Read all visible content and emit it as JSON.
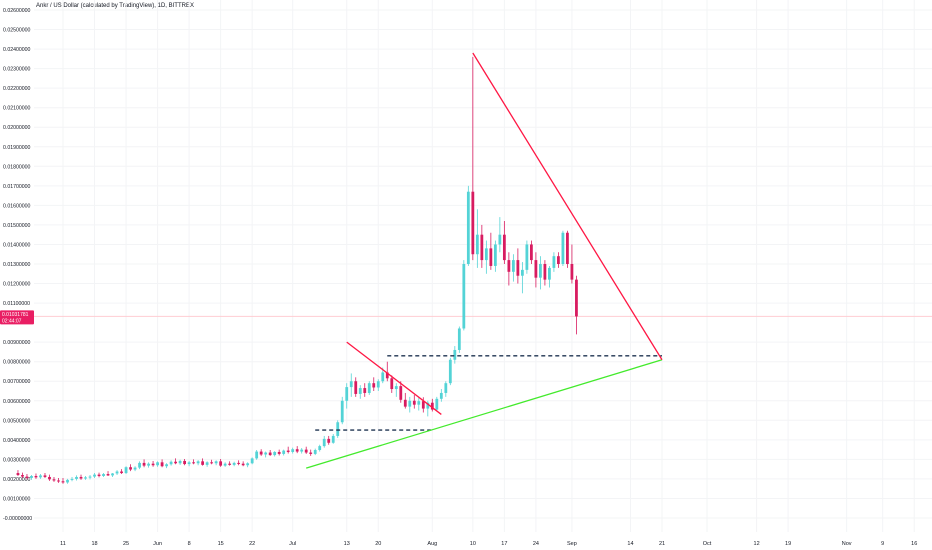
{
  "title": "Ankr / US Dollar (calculated by TradingView), 1D, BITTREX",
  "colors": {
    "up": "#53d3d6",
    "down": "#d81b60",
    "resistance": "#ff1744",
    "support": "#43ea2c",
    "level": "#1e3350",
    "price": "#ffcdd2",
    "badge": "#e91e63"
  },
  "chart_data": {
    "type": "candlestick",
    "y_axis": {
      "min": -0.001,
      "max": 0.026,
      "ticks": [
        "0.02600000",
        "0.02500000",
        "0.02400000",
        "0.02300000",
        "0.02200000",
        "0.02100000",
        "0.02000000",
        "0.01900000",
        "0.01800000",
        "0.01700000",
        "0.01600000",
        "0.01500000",
        "0.01400000",
        "0.01300000",
        "0.01200000",
        "0.01100000",
        "0.00900000",
        "0.00800000",
        "0.00700000",
        "0.00600000",
        "0.00500000",
        "0.00400000",
        "0.00300000",
        "0.00200000",
        "0.00100000",
        "-0.00000000"
      ],
      "tick_values": [
        0.026,
        0.025,
        0.024,
        0.023,
        0.022,
        0.021,
        0.02,
        0.019,
        0.018,
        0.017,
        0.016,
        0.015,
        0.014,
        0.013,
        0.012,
        0.011,
        0.009,
        0.008,
        0.007,
        0.006,
        0.005,
        0.004,
        0.003,
        0.002,
        0.001,
        0.0
      ]
    },
    "x_axis": {
      "ticks": [
        "11",
        "18",
        "25",
        "Jun",
        "8",
        "15",
        "22",
        "Jul",
        "13",
        "20",
        "Aug",
        "10",
        "17",
        "24",
        "Sep",
        "14",
        "21",
        "Oct",
        "12",
        "19",
        "Nov",
        "9",
        "16"
      ],
      "tick_dates": [
        "2020-05-11",
        "2020-05-18",
        "2020-05-25",
        "2020-06-01",
        "2020-06-08",
        "2020-06-15",
        "2020-06-22",
        "2020-07-01",
        "2020-07-13",
        "2020-07-20",
        "2020-08-01",
        "2020-08-10",
        "2020-08-17",
        "2020-08-24",
        "2020-09-01",
        "2020-09-14",
        "2020-09-21",
        "2020-10-01",
        "2020-10-12",
        "2020-10-19",
        "2020-11-01",
        "2020-11-09",
        "2020-11-16"
      ]
    },
    "current_price": {
      "label": "0.01031781",
      "countdown": "02:44:07",
      "value": 0.01031781
    },
    "candles": [
      {
        "d": "2020-05-01",
        "o": 0.0023,
        "h": 0.00245,
        "l": 0.00215,
        "c": 0.0022
      },
      {
        "d": "2020-05-02",
        "o": 0.0022,
        "h": 0.00232,
        "l": 0.00205,
        "c": 0.00212
      },
      {
        "d": "2020-05-03",
        "o": 0.00212,
        "h": 0.00225,
        "l": 0.00198,
        "c": 0.00205
      },
      {
        "d": "2020-05-04",
        "o": 0.00205,
        "h": 0.0022,
        "l": 0.00195,
        "c": 0.00215
      },
      {
        "d": "2020-05-05",
        "o": 0.00215,
        "h": 0.00228,
        "l": 0.002,
        "c": 0.00208
      },
      {
        "d": "2020-05-06",
        "o": 0.00208,
        "h": 0.00225,
        "l": 0.002,
        "c": 0.00218
      },
      {
        "d": "2020-05-07",
        "o": 0.00218,
        "h": 0.0023,
        "l": 0.00205,
        "c": 0.0021
      },
      {
        "d": "2020-05-08",
        "o": 0.0021,
        "h": 0.00222,
        "l": 0.0019,
        "c": 0.00198
      },
      {
        "d": "2020-05-09",
        "o": 0.00198,
        "h": 0.0021,
        "l": 0.00185,
        "c": 0.00192
      },
      {
        "d": "2020-05-10",
        "o": 0.00192,
        "h": 0.00205,
        "l": 0.0018,
        "c": 0.00188
      },
      {
        "d": "2020-05-11",
        "o": 0.00188,
        "h": 0.00205,
        "l": 0.00175,
        "c": 0.00182
      },
      {
        "d": "2020-05-12",
        "o": 0.00182,
        "h": 0.002,
        "l": 0.00175,
        "c": 0.00195
      },
      {
        "d": "2020-05-13",
        "o": 0.00195,
        "h": 0.0021,
        "l": 0.00188,
        "c": 0.002
      },
      {
        "d": "2020-05-14",
        "o": 0.002,
        "h": 0.00218,
        "l": 0.00192,
        "c": 0.0021
      },
      {
        "d": "2020-05-15",
        "o": 0.0021,
        "h": 0.00222,
        "l": 0.00195,
        "c": 0.00202
      },
      {
        "d": "2020-05-16",
        "o": 0.00202,
        "h": 0.00215,
        "l": 0.00195,
        "c": 0.00208
      },
      {
        "d": "2020-05-17",
        "o": 0.00208,
        "h": 0.0022,
        "l": 0.00198,
        "c": 0.00212
      },
      {
        "d": "2020-05-18",
        "o": 0.00212,
        "h": 0.0023,
        "l": 0.00205,
        "c": 0.00222
      },
      {
        "d": "2020-05-19",
        "o": 0.00222,
        "h": 0.00232,
        "l": 0.00208,
        "c": 0.00215
      },
      {
        "d": "2020-05-20",
        "o": 0.00215,
        "h": 0.0023,
        "l": 0.0021,
        "c": 0.00225
      },
      {
        "d": "2020-05-21",
        "o": 0.00225,
        "h": 0.0024,
        "l": 0.00215,
        "c": 0.00218
      },
      {
        "d": "2020-05-22",
        "o": 0.00218,
        "h": 0.0023,
        "l": 0.0021,
        "c": 0.00228
      },
      {
        "d": "2020-05-23",
        "o": 0.00228,
        "h": 0.00245,
        "l": 0.0022,
        "c": 0.00238
      },
      {
        "d": "2020-05-24",
        "o": 0.00238,
        "h": 0.0025,
        "l": 0.00225,
        "c": 0.0023
      },
      {
        "d": "2020-05-25",
        "o": 0.0023,
        "h": 0.00265,
        "l": 0.00225,
        "c": 0.0026
      },
      {
        "d": "2020-05-26",
        "o": 0.0026,
        "h": 0.00275,
        "l": 0.0024,
        "c": 0.00248
      },
      {
        "d": "2020-05-27",
        "o": 0.00248,
        "h": 0.00265,
        "l": 0.0024,
        "c": 0.00258
      },
      {
        "d": "2020-05-28",
        "o": 0.00258,
        "h": 0.0029,
        "l": 0.0025,
        "c": 0.00282
      },
      {
        "d": "2020-05-29",
        "o": 0.00282,
        "h": 0.003,
        "l": 0.0026,
        "c": 0.00268
      },
      {
        "d": "2020-05-30",
        "o": 0.00268,
        "h": 0.00285,
        "l": 0.00258,
        "c": 0.00278
      },
      {
        "d": "2020-05-31",
        "o": 0.00278,
        "h": 0.00292,
        "l": 0.00262,
        "c": 0.0027
      },
      {
        "d": "2020-06-01",
        "o": 0.0027,
        "h": 0.0029,
        "l": 0.00262,
        "c": 0.00285
      },
      {
        "d": "2020-06-02",
        "o": 0.00285,
        "h": 0.003,
        "l": 0.0026,
        "c": 0.00265
      },
      {
        "d": "2020-06-03",
        "o": 0.00265,
        "h": 0.0028,
        "l": 0.00255,
        "c": 0.00275
      },
      {
        "d": "2020-06-04",
        "o": 0.00275,
        "h": 0.00295,
        "l": 0.00268,
        "c": 0.00288
      },
      {
        "d": "2020-06-05",
        "o": 0.00288,
        "h": 0.00305,
        "l": 0.00275,
        "c": 0.0028
      },
      {
        "d": "2020-06-06",
        "o": 0.0028,
        "h": 0.00298,
        "l": 0.00272,
        "c": 0.00292
      },
      {
        "d": "2020-06-07",
        "o": 0.00292,
        "h": 0.00302,
        "l": 0.0027,
        "c": 0.00276
      },
      {
        "d": "2020-06-08",
        "o": 0.00276,
        "h": 0.00292,
        "l": 0.00265,
        "c": 0.00285
      },
      {
        "d": "2020-06-09",
        "o": 0.00285,
        "h": 0.003,
        "l": 0.00275,
        "c": 0.0028
      },
      {
        "d": "2020-06-10",
        "o": 0.0028,
        "h": 0.00296,
        "l": 0.0027,
        "c": 0.0029
      },
      {
        "d": "2020-06-11",
        "o": 0.0029,
        "h": 0.00305,
        "l": 0.00268,
        "c": 0.00272
      },
      {
        "d": "2020-06-12",
        "o": 0.00272,
        "h": 0.0029,
        "l": 0.00262,
        "c": 0.00285
      },
      {
        "d": "2020-06-13",
        "o": 0.00285,
        "h": 0.00298,
        "l": 0.00275,
        "c": 0.0028
      },
      {
        "d": "2020-06-14",
        "o": 0.0028,
        "h": 0.00295,
        "l": 0.0027,
        "c": 0.0029
      },
      {
        "d": "2020-06-15",
        "o": 0.0029,
        "h": 0.00302,
        "l": 0.00262,
        "c": 0.00268
      },
      {
        "d": "2020-06-16",
        "o": 0.00268,
        "h": 0.00285,
        "l": 0.00262,
        "c": 0.00278
      },
      {
        "d": "2020-06-17",
        "o": 0.00278,
        "h": 0.0029,
        "l": 0.00268,
        "c": 0.00272
      },
      {
        "d": "2020-06-18",
        "o": 0.00272,
        "h": 0.00288,
        "l": 0.00265,
        "c": 0.00282
      },
      {
        "d": "2020-06-19",
        "o": 0.00282,
        "h": 0.00295,
        "l": 0.0027,
        "c": 0.00278
      },
      {
        "d": "2020-06-20",
        "o": 0.00278,
        "h": 0.0029,
        "l": 0.00265,
        "c": 0.0027
      },
      {
        "d": "2020-06-21",
        "o": 0.0027,
        "h": 0.00285,
        "l": 0.0026,
        "c": 0.0028
      },
      {
        "d": "2020-06-22",
        "o": 0.0028,
        "h": 0.0031,
        "l": 0.00275,
        "c": 0.00305
      },
      {
        "d": "2020-06-23",
        "o": 0.00305,
        "h": 0.00348,
        "l": 0.00298,
        "c": 0.0034
      },
      {
        "d": "2020-06-24",
        "o": 0.0034,
        "h": 0.00352,
        "l": 0.00318,
        "c": 0.00325
      },
      {
        "d": "2020-06-25",
        "o": 0.00325,
        "h": 0.0034,
        "l": 0.0031,
        "c": 0.00335
      },
      {
        "d": "2020-06-26",
        "o": 0.00335,
        "h": 0.00348,
        "l": 0.00318,
        "c": 0.00322
      },
      {
        "d": "2020-06-27",
        "o": 0.00322,
        "h": 0.00342,
        "l": 0.00315,
        "c": 0.00338
      },
      {
        "d": "2020-06-28",
        "o": 0.00338,
        "h": 0.0035,
        "l": 0.0032,
        "c": 0.00328
      },
      {
        "d": "2020-06-29",
        "o": 0.00328,
        "h": 0.0035,
        "l": 0.0032,
        "c": 0.00345
      },
      {
        "d": "2020-06-30",
        "o": 0.00345,
        "h": 0.00365,
        "l": 0.0033,
        "c": 0.00338
      },
      {
        "d": "2020-07-01",
        "o": 0.00338,
        "h": 0.0036,
        "l": 0.0033,
        "c": 0.00352
      },
      {
        "d": "2020-07-02",
        "o": 0.00352,
        "h": 0.00368,
        "l": 0.00332,
        "c": 0.0034
      },
      {
        "d": "2020-07-03",
        "o": 0.0034,
        "h": 0.00358,
        "l": 0.0033,
        "c": 0.0035
      },
      {
        "d": "2020-07-04",
        "o": 0.0035,
        "h": 0.00365,
        "l": 0.00328,
        "c": 0.00335
      },
      {
        "d": "2020-07-05",
        "o": 0.00335,
        "h": 0.0035,
        "l": 0.00318,
        "c": 0.00328
      },
      {
        "d": "2020-07-06",
        "o": 0.00328,
        "h": 0.00355,
        "l": 0.00322,
        "c": 0.00348
      },
      {
        "d": "2020-07-07",
        "o": 0.00348,
        "h": 0.00375,
        "l": 0.0034,
        "c": 0.00368
      },
      {
        "d": "2020-07-08",
        "o": 0.00368,
        "h": 0.0042,
        "l": 0.0036,
        "c": 0.00405
      },
      {
        "d": "2020-07-09",
        "o": 0.00405,
        "h": 0.0042,
        "l": 0.00375,
        "c": 0.00385
      },
      {
        "d": "2020-07-10",
        "o": 0.00385,
        "h": 0.0043,
        "l": 0.0038,
        "c": 0.0042
      },
      {
        "d": "2020-07-11",
        "o": 0.0042,
        "h": 0.005,
        "l": 0.0041,
        "c": 0.0049
      },
      {
        "d": "2020-07-12",
        "o": 0.0049,
        "h": 0.0062,
        "l": 0.0048,
        "c": 0.006
      },
      {
        "d": "2020-07-13",
        "o": 0.006,
        "h": 0.0069,
        "l": 0.0056,
        "c": 0.0067
      },
      {
        "d": "2020-07-14",
        "o": 0.0067,
        "h": 0.0074,
        "l": 0.0062,
        "c": 0.007
      },
      {
        "d": "2020-07-15",
        "o": 0.007,
        "h": 0.0072,
        "l": 0.0062,
        "c": 0.00635
      },
      {
        "d": "2020-07-16",
        "o": 0.00635,
        "h": 0.0068,
        "l": 0.0061,
        "c": 0.00665
      },
      {
        "d": "2020-07-17",
        "o": 0.00665,
        "h": 0.0069,
        "l": 0.0062,
        "c": 0.0064
      },
      {
        "d": "2020-07-18",
        "o": 0.0064,
        "h": 0.007,
        "l": 0.0063,
        "c": 0.0069
      },
      {
        "d": "2020-07-19",
        "o": 0.0069,
        "h": 0.0072,
        "l": 0.0065,
        "c": 0.00668
      },
      {
        "d": "2020-07-20",
        "o": 0.00668,
        "h": 0.0071,
        "l": 0.0065,
        "c": 0.007
      },
      {
        "d": "2020-07-21",
        "o": 0.007,
        "h": 0.0077,
        "l": 0.0069,
        "c": 0.00745
      },
      {
        "d": "2020-07-22",
        "o": 0.00745,
        "h": 0.008,
        "l": 0.007,
        "c": 0.00715
      },
      {
        "d": "2020-07-23",
        "o": 0.00715,
        "h": 0.0073,
        "l": 0.0064,
        "c": 0.0066
      },
      {
        "d": "2020-07-24",
        "o": 0.0066,
        "h": 0.0069,
        "l": 0.0062,
        "c": 0.00675
      },
      {
        "d": "2020-07-25",
        "o": 0.00675,
        "h": 0.007,
        "l": 0.0059,
        "c": 0.00605
      },
      {
        "d": "2020-07-26",
        "o": 0.00605,
        "h": 0.0064,
        "l": 0.0056,
        "c": 0.0057
      },
      {
        "d": "2020-07-27",
        "o": 0.0057,
        "h": 0.0062,
        "l": 0.0054,
        "c": 0.006
      },
      {
        "d": "2020-07-28",
        "o": 0.006,
        "h": 0.0063,
        "l": 0.0056,
        "c": 0.0058
      },
      {
        "d": "2020-07-29",
        "o": 0.0058,
        "h": 0.0062,
        "l": 0.0055,
        "c": 0.00598
      },
      {
        "d": "2020-07-30",
        "o": 0.00598,
        "h": 0.00618,
        "l": 0.0054,
        "c": 0.0056
      },
      {
        "d": "2020-07-31",
        "o": 0.0056,
        "h": 0.006,
        "l": 0.0052,
        "c": 0.0059
      },
      {
        "d": "2020-08-01",
        "o": 0.0059,
        "h": 0.0061,
        "l": 0.00545,
        "c": 0.00555
      },
      {
        "d": "2020-08-02",
        "o": 0.00555,
        "h": 0.0062,
        "l": 0.00545,
        "c": 0.0061
      },
      {
        "d": "2020-08-03",
        "o": 0.0061,
        "h": 0.0066,
        "l": 0.00595,
        "c": 0.0064
      },
      {
        "d": "2020-08-04",
        "o": 0.0064,
        "h": 0.007,
        "l": 0.0062,
        "c": 0.0069
      },
      {
        "d": "2020-08-05",
        "o": 0.0069,
        "h": 0.0082,
        "l": 0.0068,
        "c": 0.0081
      },
      {
        "d": "2020-08-06",
        "o": 0.0081,
        "h": 0.0088,
        "l": 0.0079,
        "c": 0.0086
      },
      {
        "d": "2020-08-07",
        "o": 0.0086,
        "h": 0.0098,
        "l": 0.00845,
        "c": 0.0097
      },
      {
        "d": "2020-08-08",
        "o": 0.0097,
        "h": 0.0132,
        "l": 0.0096,
        "c": 0.013
      },
      {
        "d": "2020-08-09",
        "o": 0.013,
        "h": 0.017,
        "l": 0.0129,
        "c": 0.0167
      },
      {
        "d": "2020-08-10",
        "o": 0.0167,
        "h": 0.0236,
        "l": 0.0132,
        "c": 0.0135
      },
      {
        "d": "2020-08-11",
        "o": 0.0135,
        "h": 0.0158,
        "l": 0.0128,
        "c": 0.0145
      },
      {
        "d": "2020-08-12",
        "o": 0.0145,
        "h": 0.015,
        "l": 0.0128,
        "c": 0.0132
      },
      {
        "d": "2020-08-13",
        "o": 0.0132,
        "h": 0.0142,
        "l": 0.0125,
        "c": 0.0138
      },
      {
        "d": "2020-08-14",
        "o": 0.0138,
        "h": 0.0146,
        "l": 0.0127,
        "c": 0.0129
      },
      {
        "d": "2020-08-15",
        "o": 0.0129,
        "h": 0.0142,
        "l": 0.0126,
        "c": 0.014
      },
      {
        "d": "2020-08-16",
        "o": 0.014,
        "h": 0.0154,
        "l": 0.0136,
        "c": 0.0145
      },
      {
        "d": "2020-08-17",
        "o": 0.0145,
        "h": 0.0152,
        "l": 0.013,
        "c": 0.0132
      },
      {
        "d": "2020-08-18",
        "o": 0.0132,
        "h": 0.0136,
        "l": 0.0119,
        "c": 0.0126
      },
      {
        "d": "2020-08-19",
        "o": 0.0126,
        "h": 0.0135,
        "l": 0.0121,
        "c": 0.0132
      },
      {
        "d": "2020-08-20",
        "o": 0.0132,
        "h": 0.0138,
        "l": 0.012,
        "c": 0.0124
      },
      {
        "d": "2020-08-21",
        "o": 0.0124,
        "h": 0.0131,
        "l": 0.0115,
        "c": 0.0127
      },
      {
        "d": "2020-08-22",
        "o": 0.0127,
        "h": 0.0142,
        "l": 0.0125,
        "c": 0.014
      },
      {
        "d": "2020-08-23",
        "o": 0.014,
        "h": 0.0142,
        "l": 0.013,
        "c": 0.0132
      },
      {
        "d": "2020-08-24",
        "o": 0.0132,
        "h": 0.0136,
        "l": 0.0118,
        "c": 0.0123
      },
      {
        "d": "2020-08-25",
        "o": 0.0123,
        "h": 0.0134,
        "l": 0.0117,
        "c": 0.013
      },
      {
        "d": "2020-08-26",
        "o": 0.013,
        "h": 0.0132,
        "l": 0.0119,
        "c": 0.0122
      },
      {
        "d": "2020-08-27",
        "o": 0.0122,
        "h": 0.0129,
        "l": 0.0118,
        "c": 0.0128
      },
      {
        "d": "2020-08-28",
        "o": 0.0128,
        "h": 0.0136,
        "l": 0.0126,
        "c": 0.0134
      },
      {
        "d": "2020-08-29",
        "o": 0.0134,
        "h": 0.0136,
        "l": 0.0128,
        "c": 0.013
      },
      {
        "d": "2020-08-30",
        "o": 0.013,
        "h": 0.0147,
        "l": 0.0129,
        "c": 0.0146
      },
      {
        "d": "2020-08-31",
        "o": 0.0146,
        "h": 0.0147,
        "l": 0.0128,
        "c": 0.013
      },
      {
        "d": "2020-09-01",
        "o": 0.013,
        "h": 0.014,
        "l": 0.012,
        "c": 0.0122
      },
      {
        "d": "2020-09-02",
        "o": 0.0122,
        "h": 0.0124,
        "l": 0.0094,
        "c": 0.01031781
      }
    ],
    "annotations": {
      "resistance_line_small": {
        "from": {
          "d": "2020-07-13",
          "v": 0.009
        },
        "to": {
          "d": "2020-08-03",
          "v": 0.0053
        }
      },
      "resistance_line_large": {
        "from": {
          "d": "2020-08-10",
          "v": 0.0238
        },
        "to": {
          "d": "2020-09-21",
          "v": 0.0081
        }
      },
      "support_line": {
        "from": {
          "d": "2020-07-04",
          "v": 0.00255
        },
        "to": {
          "d": "2020-09-21",
          "v": 0.0081
        }
      },
      "dashed_level_high": {
        "from": {
          "d": "2020-07-22",
          "v": 0.0083
        },
        "to": {
          "d": "2020-09-21",
          "v": 0.0083
        }
      },
      "dashed_level_low": {
        "from": {
          "d": "2020-07-06",
          "v": 0.0045
        },
        "to": {
          "d": "2020-08-01",
          "v": 0.0045
        }
      }
    }
  }
}
